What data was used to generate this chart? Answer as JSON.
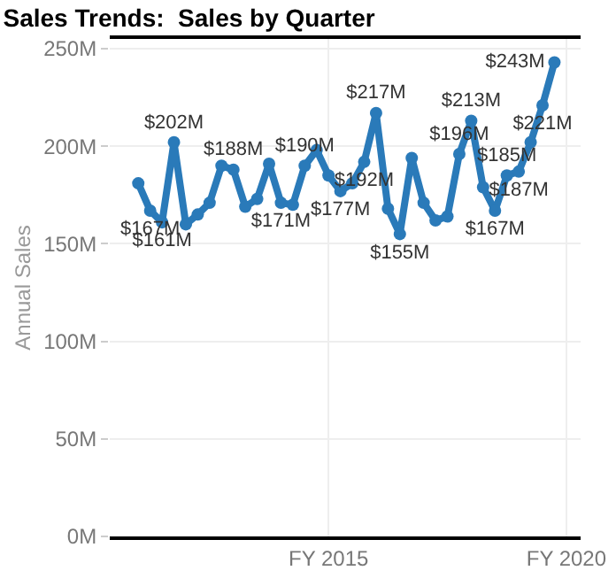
{
  "chart_data": {
    "type": "line",
    "title": "Sales Trends:  Sales by Quarter",
    "ylabel": "Annual Sales",
    "categories": [
      null,
      null,
      null,
      null,
      null,
      null,
      null,
      null,
      null,
      null,
      null,
      null,
      null,
      null,
      null,
      null,
      "FY 2015",
      null,
      null,
      null,
      null,
      null,
      null,
      null,
      null,
      null,
      null,
      null,
      null,
      null,
      null,
      null,
      null,
      null,
      null,
      null,
      "FY 2020"
    ],
    "series": [
      {
        "color": "#2a7ab9",
        "values": [
          181,
          167,
          161,
          202,
          160,
          165,
          171,
          190,
          188,
          169,
          173,
          191,
          171,
          170,
          190,
          198,
          185,
          177,
          181,
          192,
          217,
          168,
          155,
          194,
          171,
          162,
          164,
          196,
          213,
          179,
          167,
          185,
          187,
          202,
          221,
          243,
          null
        ],
        "value_labels": [
          null,
          "$167M",
          "$161M",
          "$202M",
          null,
          null,
          null,
          null,
          "$188M",
          null,
          null,
          null,
          "$171M",
          null,
          "$190M",
          null,
          null,
          "$177M",
          null,
          "$192M",
          "$217M",
          null,
          "$155M",
          null,
          null,
          null,
          null,
          "$196M",
          "$213M",
          null,
          "$167M",
          "$185M",
          "$187M",
          null,
          "$221M",
          "$243M",
          null
        ]
      }
    ],
    "ylim": [
      0,
      255
    ],
    "yticks": [
      {
        "value": 0,
        "label": "0M"
      },
      {
        "value": 50,
        "label": "50M"
      },
      {
        "value": 100,
        "label": "100M"
      },
      {
        "value": 150,
        "label": "150M"
      },
      {
        "value": 200,
        "label": "200M"
      },
      {
        "value": 250,
        "label": "250M"
      }
    ],
    "grid": true,
    "marker": "circle",
    "line_style": "solid"
  }
}
